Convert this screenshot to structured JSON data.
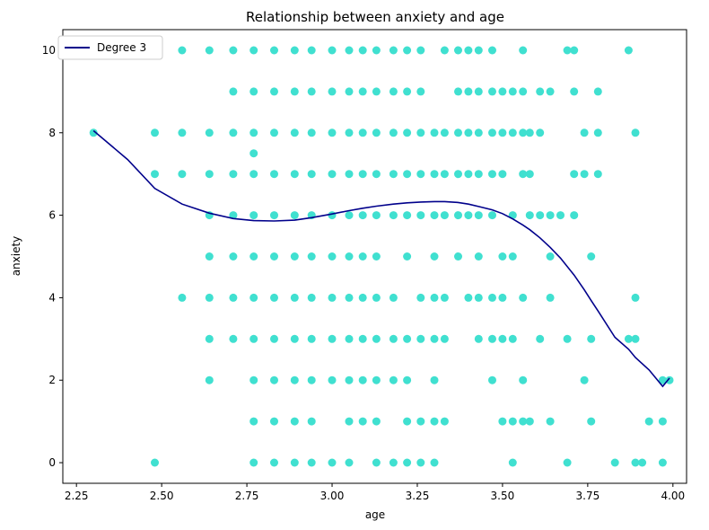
{
  "chart_data": {
    "type": "scatter",
    "title": "Relationship between anxiety and age",
    "xlabel": "age",
    "ylabel": "anxiety",
    "xlim": [
      2.21,
      4.04
    ],
    "ylim": [
      -0.5,
      10.5
    ],
    "xticks": [
      2.25,
      2.5,
      2.75,
      3.0,
      3.25,
      3.5,
      3.75,
      4.0
    ],
    "xtick_labels": [
      "2.25",
      "2.50",
      "2.75",
      "3.00",
      "3.25",
      "3.50",
      "3.75",
      "4.00"
    ],
    "yticks": [
      0,
      2,
      4,
      6,
      8,
      10
    ],
    "ytick_labels": [
      "0",
      "2",
      "4",
      "6",
      "8",
      "10"
    ],
    "grid": false,
    "legend": {
      "position": "top-left",
      "entries": [
        "Degree 3"
      ]
    },
    "colors": {
      "points": "#40e0d0",
      "curve": "#00008b"
    },
    "series": [
      {
        "kind": "points",
        "points": [
          [
            2.3,
            8
          ],
          [
            2.48,
            8
          ],
          [
            2.48,
            7
          ],
          [
            2.48,
            0
          ],
          [
            2.56,
            10
          ],
          [
            2.56,
            8
          ],
          [
            2.56,
            7
          ],
          [
            2.56,
            4
          ],
          [
            2.64,
            10
          ],
          [
            2.64,
            8
          ],
          [
            2.64,
            7
          ],
          [
            2.64,
            6
          ],
          [
            2.64,
            5
          ],
          [
            2.64,
            4
          ],
          [
            2.64,
            3
          ],
          [
            2.64,
            2
          ],
          [
            2.71,
            10
          ],
          [
            2.71,
            9
          ],
          [
            2.71,
            8
          ],
          [
            2.71,
            7
          ],
          [
            2.71,
            6
          ],
          [
            2.71,
            5
          ],
          [
            2.71,
            4
          ],
          [
            2.71,
            3
          ],
          [
            2.77,
            10
          ],
          [
            2.77,
            9
          ],
          [
            2.77,
            8
          ],
          [
            2.77,
            7.5
          ],
          [
            2.77,
            7
          ],
          [
            2.77,
            6
          ],
          [
            2.77,
            5
          ],
          [
            2.77,
            4
          ],
          [
            2.77,
            3
          ],
          [
            2.77,
            2
          ],
          [
            2.77,
            1
          ],
          [
            2.77,
            0
          ],
          [
            2.83,
            10
          ],
          [
            2.83,
            9
          ],
          [
            2.83,
            8
          ],
          [
            2.83,
            7
          ],
          [
            2.83,
            6
          ],
          [
            2.83,
            5
          ],
          [
            2.83,
            4
          ],
          [
            2.83,
            3
          ],
          [
            2.83,
            2
          ],
          [
            2.83,
            1
          ],
          [
            2.83,
            0
          ],
          [
            2.89,
            10
          ],
          [
            2.89,
            9
          ],
          [
            2.89,
            8
          ],
          [
            2.89,
            7
          ],
          [
            2.89,
            6
          ],
          [
            2.89,
            5
          ],
          [
            2.89,
            4
          ],
          [
            2.89,
            3
          ],
          [
            2.89,
            2
          ],
          [
            2.89,
            1
          ],
          [
            2.89,
            0
          ],
          [
            2.94,
            10
          ],
          [
            2.94,
            9
          ],
          [
            2.94,
            8
          ],
          [
            2.94,
            7
          ],
          [
            2.94,
            6
          ],
          [
            2.94,
            5
          ],
          [
            2.94,
            4
          ],
          [
            2.94,
            3
          ],
          [
            2.94,
            2
          ],
          [
            2.94,
            1
          ],
          [
            2.94,
            0
          ],
          [
            3.0,
            10
          ],
          [
            3.0,
            9
          ],
          [
            3.0,
            8
          ],
          [
            3.0,
            7
          ],
          [
            3.0,
            6
          ],
          [
            3.0,
            5
          ],
          [
            3.0,
            4
          ],
          [
            3.0,
            3
          ],
          [
            3.0,
            2
          ],
          [
            3.0,
            0
          ],
          [
            3.05,
            10
          ],
          [
            3.05,
            9
          ],
          [
            3.05,
            8
          ],
          [
            3.05,
            7
          ],
          [
            3.05,
            6
          ],
          [
            3.05,
            5
          ],
          [
            3.05,
            4
          ],
          [
            3.05,
            3
          ],
          [
            3.05,
            2
          ],
          [
            3.05,
            1
          ],
          [
            3.05,
            0
          ],
          [
            3.09,
            10
          ],
          [
            3.09,
            9
          ],
          [
            3.09,
            8
          ],
          [
            3.09,
            7
          ],
          [
            3.09,
            6
          ],
          [
            3.09,
            5
          ],
          [
            3.09,
            4
          ],
          [
            3.09,
            3
          ],
          [
            3.09,
            2
          ],
          [
            3.09,
            1
          ],
          [
            3.13,
            10
          ],
          [
            3.13,
            9
          ],
          [
            3.13,
            8
          ],
          [
            3.13,
            7
          ],
          [
            3.13,
            6
          ],
          [
            3.13,
            5
          ],
          [
            3.13,
            4
          ],
          [
            3.13,
            3
          ],
          [
            3.13,
            2
          ],
          [
            3.13,
            1
          ],
          [
            3.13,
            0
          ],
          [
            3.18,
            10
          ],
          [
            3.18,
            9
          ],
          [
            3.18,
            8
          ],
          [
            3.18,
            7
          ],
          [
            3.18,
            6
          ],
          [
            3.18,
            4
          ],
          [
            3.18,
            3
          ],
          [
            3.18,
            2
          ],
          [
            3.18,
            0
          ],
          [
            3.22,
            10
          ],
          [
            3.22,
            9
          ],
          [
            3.22,
            8
          ],
          [
            3.22,
            7
          ],
          [
            3.22,
            6
          ],
          [
            3.22,
            5
          ],
          [
            3.22,
            3
          ],
          [
            3.22,
            2
          ],
          [
            3.22,
            1
          ],
          [
            3.22,
            0
          ],
          [
            3.26,
            10
          ],
          [
            3.26,
            9
          ],
          [
            3.26,
            8
          ],
          [
            3.26,
            7
          ],
          [
            3.26,
            6
          ],
          [
            3.26,
            4
          ],
          [
            3.26,
            3
          ],
          [
            3.26,
            1
          ],
          [
            3.26,
            0
          ],
          [
            3.3,
            8
          ],
          [
            3.3,
            7
          ],
          [
            3.3,
            6
          ],
          [
            3.3,
            5
          ],
          [
            3.3,
            4
          ],
          [
            3.3,
            3
          ],
          [
            3.3,
            2
          ],
          [
            3.3,
            1
          ],
          [
            3.3,
            0
          ],
          [
            3.33,
            10
          ],
          [
            3.33,
            8
          ],
          [
            3.33,
            7
          ],
          [
            3.33,
            6
          ],
          [
            3.33,
            4
          ],
          [
            3.33,
            3
          ],
          [
            3.33,
            1
          ],
          [
            3.37,
            10
          ],
          [
            3.37,
            9
          ],
          [
            3.37,
            8
          ],
          [
            3.37,
            7
          ],
          [
            3.37,
            6
          ],
          [
            3.37,
            5
          ],
          [
            3.4,
            10
          ],
          [
            3.4,
            9
          ],
          [
            3.4,
            8
          ],
          [
            3.4,
            7
          ],
          [
            3.4,
            6
          ],
          [
            3.4,
            4
          ],
          [
            3.43,
            10
          ],
          [
            3.43,
            9
          ],
          [
            3.43,
            8
          ],
          [
            3.43,
            7
          ],
          [
            3.43,
            6
          ],
          [
            3.43,
            5
          ],
          [
            3.43,
            4
          ],
          [
            3.43,
            3
          ],
          [
            3.47,
            10
          ],
          [
            3.47,
            9
          ],
          [
            3.47,
            8
          ],
          [
            3.47,
            7
          ],
          [
            3.47,
            6
          ],
          [
            3.47,
            4
          ],
          [
            3.47,
            3
          ],
          [
            3.47,
            2
          ],
          [
            3.5,
            9
          ],
          [
            3.5,
            8
          ],
          [
            3.5,
            7
          ],
          [
            3.5,
            5
          ],
          [
            3.5,
            4
          ],
          [
            3.5,
            3
          ],
          [
            3.5,
            1
          ],
          [
            3.53,
            9
          ],
          [
            3.53,
            8
          ],
          [
            3.53,
            6
          ],
          [
            3.53,
            5
          ],
          [
            3.53,
            3
          ],
          [
            3.53,
            1
          ],
          [
            3.53,
            0
          ],
          [
            3.56,
            10
          ],
          [
            3.56,
            9
          ],
          [
            3.56,
            8
          ],
          [
            3.56,
            7
          ],
          [
            3.56,
            4
          ],
          [
            3.56,
            2
          ],
          [
            3.56,
            1
          ],
          [
            3.58,
            8
          ],
          [
            3.58,
            7
          ],
          [
            3.58,
            6
          ],
          [
            3.58,
            1
          ],
          [
            3.61,
            9
          ],
          [
            3.61,
            8
          ],
          [
            3.61,
            6
          ],
          [
            3.61,
            3
          ],
          [
            3.64,
            9
          ],
          [
            3.64,
            6
          ],
          [
            3.64,
            5
          ],
          [
            3.64,
            4
          ],
          [
            3.64,
            1
          ],
          [
            3.67,
            6
          ],
          [
            3.69,
            10
          ],
          [
            3.69,
            3
          ],
          [
            3.69,
            0
          ],
          [
            3.71,
            10
          ],
          [
            3.71,
            9
          ],
          [
            3.71,
            7
          ],
          [
            3.71,
            6
          ],
          [
            3.74,
            8
          ],
          [
            3.74,
            7
          ],
          [
            3.74,
            2
          ],
          [
            3.76,
            5
          ],
          [
            3.76,
            3
          ],
          [
            3.76,
            1
          ],
          [
            3.78,
            9
          ],
          [
            3.78,
            8
          ],
          [
            3.78,
            7
          ],
          [
            3.83,
            0
          ],
          [
            3.87,
            10
          ],
          [
            3.87,
            3
          ],
          [
            3.89,
            8
          ],
          [
            3.89,
            4
          ],
          [
            3.89,
            3
          ],
          [
            3.89,
            0
          ],
          [
            3.91,
            0
          ],
          [
            3.93,
            1
          ],
          [
            3.97,
            2
          ],
          [
            3.97,
            1
          ],
          [
            3.97,
            0
          ],
          [
            3.99,
            2
          ]
        ]
      },
      {
        "kind": "line",
        "name": "Degree 3",
        "x": [
          2.3,
          2.4,
          2.48,
          2.56,
          2.64,
          2.71,
          2.77,
          2.83,
          2.89,
          2.94,
          3.0,
          3.05,
          3.09,
          3.13,
          3.18,
          3.22,
          3.26,
          3.3,
          3.33,
          3.37,
          3.4,
          3.43,
          3.47,
          3.5,
          3.53,
          3.56,
          3.58,
          3.61,
          3.64,
          3.67,
          3.71,
          3.74,
          3.76,
          3.78,
          3.83,
          3.87,
          3.89,
          3.93,
          3.97,
          3.99
        ],
        "y": [
          8.05,
          7.35,
          6.65,
          6.27,
          6.05,
          5.92,
          5.87,
          5.86,
          5.88,
          5.94,
          6.03,
          6.11,
          6.17,
          6.22,
          6.27,
          6.3,
          6.32,
          6.33,
          6.33,
          6.31,
          6.27,
          6.21,
          6.13,
          6.04,
          5.91,
          5.76,
          5.65,
          5.45,
          5.22,
          4.96,
          4.55,
          4.19,
          3.93,
          3.68,
          3.04,
          2.75,
          2.55,
          2.25,
          1.85,
          2.05
        ]
      }
    ]
  }
}
